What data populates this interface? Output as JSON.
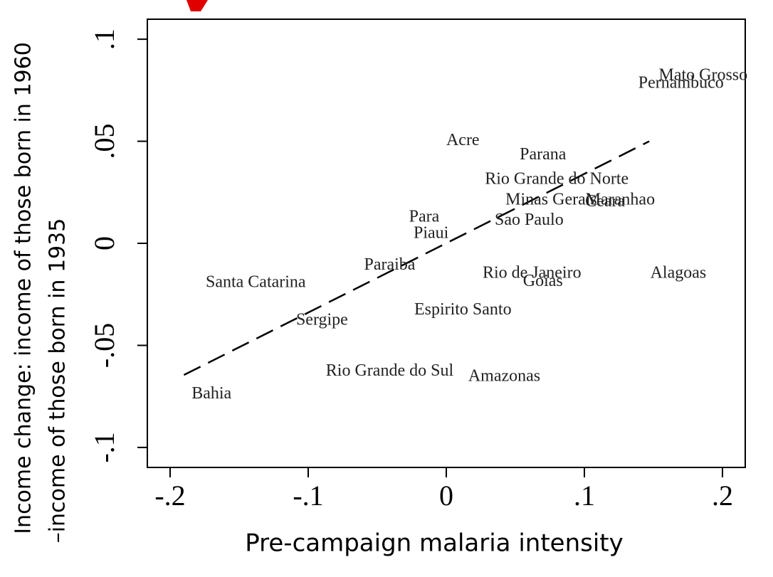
{
  "chart_data": {
    "type": "scatter",
    "x_label": "Pre-campaign malaria intensity",
    "y_label": [
      "Income change: income of those born in 1960",
      "–income of those born in 1935"
    ],
    "labels": [
      "Mato Grosso",
      "Pernambuco",
      "Acre",
      "Parana",
      "Rio Grande do Norte",
      "Minas Gerais",
      "Maranhao",
      "Ceara",
      "Para",
      "Sao Paulo",
      "Piaui",
      "Paraiba",
      "Santa Catarina",
      "Rio de Janeiro",
      "Goias",
      "Alagoas",
      "Espirito Santo",
      "Sergipe",
      "Rio Grande do Sul",
      "Amazonas",
      "Bahia"
    ],
    "x": [
      0.186,
      0.17,
      0.012,
      0.07,
      0.08,
      0.076,
      0.126,
      0.115,
      -0.016,
      0.06,
      -0.011,
      -0.041,
      -0.138,
      0.062,
      0.07,
      0.168,
      0.012,
      -0.09,
      -0.041,
      0.042,
      -0.17
    ],
    "values": [
      0.082,
      0.078,
      0.05,
      0.043,
      0.031,
      0.021,
      0.021,
      0.02,
      0.0125,
      0.011,
      0.0045,
      -0.011,
      -0.0195,
      -0.015,
      -0.019,
      -0.015,
      -0.033,
      -0.038,
      -0.063,
      -0.0655,
      -0.074
    ],
    "trendline": {
      "x": [
        -0.19,
        0.147
      ],
      "values": [
        -0.0645,
        0.05
      ],
      "color": "#000000",
      "dashed": true
    },
    "xlim": [
      -0.2165,
      0.2165
    ],
    "ylim": [
      -0.1098,
      0.1098
    ],
    "xticks": [
      {
        "value": -0.2,
        "label": "-.2"
      },
      {
        "value": -0.1,
        "label": "-.1"
      },
      0,
      {
        "value": 0.1,
        "label": ".1"
      },
      {
        "value": 0.2,
        "label": ".2"
      }
    ],
    "yticks": [
      {
        "value": -0.1,
        "label": "-.1"
      },
      {
        "value": -0.05,
        "label": "-.05"
      },
      0,
      {
        "value": 0.05,
        "label": ".05"
      },
      {
        "value": 0.1,
        "label": ".1"
      }
    ],
    "grid": false
  }
}
